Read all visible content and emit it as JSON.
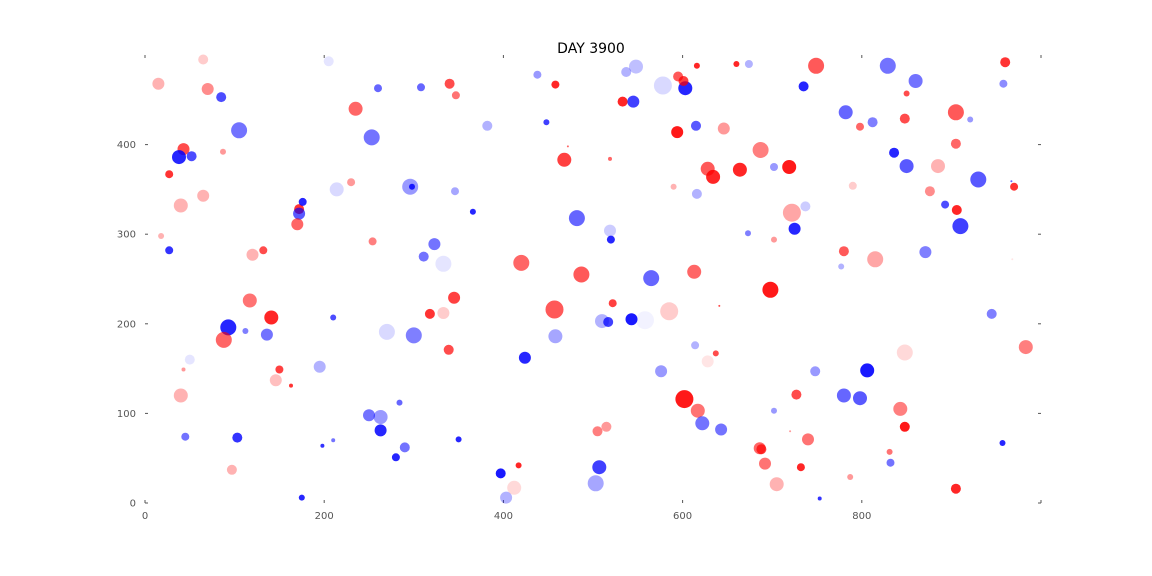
{
  "chart_data": {
    "type": "scatter",
    "title": "DAY 3900",
    "xlabel": "",
    "ylabel": "",
    "xlim": [
      0,
      1000
    ],
    "ylim": [
      0,
      500
    ],
    "x_ticks": [
      "0",
      "200",
      "400",
      "600",
      "800"
    ],
    "y_ticks": [
      "0",
      "100",
      "200",
      "300",
      "400"
    ],
    "grid": false,
    "colors": {
      "red": "#ff0000",
      "blue": "#0000ff"
    },
    "points": [
      [
        15,
        468,
        6,
        "r",
        0.3
      ],
      [
        65,
        495,
        5,
        "r",
        0.2
      ],
      [
        70,
        462,
        6,
        "r",
        0.45
      ],
      [
        85,
        453,
        5,
        "b",
        0.7
      ],
      [
        105,
        416,
        8,
        "b",
        0.55
      ],
      [
        43,
        395,
        6,
        "r",
        0.7
      ],
      [
        38,
        386,
        7,
        "b",
        0.85
      ],
      [
        52,
        387,
        5,
        "b",
        0.7
      ],
      [
        87,
        392,
        3,
        "r",
        0.4
      ],
      [
        27,
        367,
        4,
        "r",
        0.8
      ],
      [
        40,
        332,
        7,
        "r",
        0.3
      ],
      [
        65,
        343,
        6,
        "r",
        0.3
      ],
      [
        18,
        298,
        3,
        "r",
        0.3
      ],
      [
        27,
        282,
        4,
        "b",
        0.8
      ],
      [
        172,
        328,
        5,
        "r",
        0.8
      ],
      [
        172,
        323,
        6,
        "b",
        0.65
      ],
      [
        176,
        336,
        4,
        "b",
        0.85
      ],
      [
        170,
        311,
        6,
        "r",
        0.6
      ],
      [
        120,
        277,
        6,
        "r",
        0.3
      ],
      [
        132,
        282,
        4,
        "r",
        0.7
      ],
      [
        117,
        226,
        7,
        "r",
        0.55
      ],
      [
        93,
        196,
        8,
        "b",
        0.85
      ],
      [
        88,
        182,
        8,
        "r",
        0.6
      ],
      [
        141,
        207,
        7,
        "r",
        0.85
      ],
      [
        136,
        188,
        6,
        "b",
        0.55
      ],
      [
        112,
        192,
        3,
        "b",
        0.5
      ],
      [
        50,
        160,
        5,
        "b",
        0.1
      ],
      [
        43,
        149,
        2,
        "r",
        0.4
      ],
      [
        40,
        120,
        7,
        "r",
        0.3
      ],
      [
        150,
        149,
        4,
        "r",
        0.75
      ],
      [
        146,
        137,
        6,
        "r",
        0.25
      ],
      [
        163,
        131,
        2,
        "r",
        0.8
      ],
      [
        45,
        74,
        4,
        "b",
        0.55
      ],
      [
        103,
        73,
        5,
        "b",
        0.8
      ],
      [
        97,
        37,
        5,
        "r",
        0.3
      ],
      [
        175,
        6,
        3,
        "b",
        0.85
      ],
      [
        235,
        440,
        7,
        "r",
        0.6
      ],
      [
        260,
        463,
        4,
        "b",
        0.6
      ],
      [
        253,
        408,
        8,
        "b",
        0.55
      ],
      [
        308,
        464,
        4,
        "b",
        0.6
      ],
      [
        340,
        468,
        5,
        "r",
        0.7
      ],
      [
        347,
        455,
        4,
        "r",
        0.55
      ],
      [
        230,
        358,
        4,
        "r",
        0.4
      ],
      [
        214,
        350,
        7,
        "b",
        0.15
      ],
      [
        205,
        493,
        5,
        "b",
        0.1
      ],
      [
        296,
        353,
        8,
        "b",
        0.4
      ],
      [
        298,
        353,
        3,
        "b",
        0.85
      ],
      [
        346,
        348,
        4,
        "b",
        0.35
      ],
      [
        366,
        325,
        3,
        "b",
        0.85
      ],
      [
        254,
        292,
        4,
        "r",
        0.5
      ],
      [
        323,
        289,
        6,
        "b",
        0.55
      ],
      [
        311,
        275,
        5,
        "b",
        0.55
      ],
      [
        333,
        267,
        8,
        "b",
        0.1
      ],
      [
        210,
        207,
        3,
        "b",
        0.7
      ],
      [
        270,
        191,
        8,
        "b",
        0.15
      ],
      [
        300,
        187,
        8,
        "b",
        0.5
      ],
      [
        318,
        211,
        5,
        "r",
        0.8
      ],
      [
        333,
        212,
        6,
        "r",
        0.2
      ],
      [
        345,
        229,
        6,
        "r",
        0.75
      ],
      [
        339,
        171,
        5,
        "r",
        0.7
      ],
      [
        195,
        152,
        6,
        "b",
        0.3
      ],
      [
        250,
        98,
        6,
        "b",
        0.55
      ],
      [
        263,
        96,
        7,
        "b",
        0.4
      ],
      [
        263,
        81,
        6,
        "b",
        0.85
      ],
      [
        284,
        112,
        3,
        "b",
        0.6
      ],
      [
        198,
        64,
        2,
        "b",
        0.8
      ],
      [
        210,
        70,
        2,
        "b",
        0.55
      ],
      [
        290,
        62,
        5,
        "b",
        0.55
      ],
      [
        280,
        51,
        4,
        "b",
        0.85
      ],
      [
        350,
        71,
        3,
        "b",
        0.85
      ],
      [
        382,
        421,
        5,
        "b",
        0.3
      ],
      [
        438,
        478,
        4,
        "b",
        0.4
      ],
      [
        448,
        425,
        3,
        "b",
        0.75
      ],
      [
        458,
        467,
        4,
        "r",
        0.85
      ],
      [
        472,
        398,
        1,
        "r",
        0.6
      ],
      [
        468,
        383,
        7,
        "r",
        0.75
      ],
      [
        519,
        384,
        2,
        "r",
        0.6
      ],
      [
        545,
        448,
        6,
        "b",
        0.75
      ],
      [
        548,
        487,
        7,
        "b",
        0.25
      ],
      [
        533,
        448,
        5,
        "r",
        0.85
      ],
      [
        537,
        481,
        5,
        "b",
        0.3
      ],
      [
        578,
        466,
        9,
        "b",
        0.15
      ],
      [
        603,
        463,
        7,
        "b",
        0.85
      ],
      [
        595,
        476,
        5,
        "r",
        0.65
      ],
      [
        601,
        471,
        5,
        "r",
        0.75
      ],
      [
        616,
        488,
        3,
        "r",
        0.85
      ],
      [
        594,
        414,
        6,
        "r",
        0.9
      ],
      [
        615,
        421,
        5,
        "b",
        0.65
      ],
      [
        482,
        318,
        8,
        "b",
        0.6
      ],
      [
        519,
        304,
        6,
        "b",
        0.2
      ],
      [
        520,
        294,
        4,
        "b",
        0.85
      ],
      [
        590,
        353,
        3,
        "r",
        0.3
      ],
      [
        616,
        345,
        5,
        "b",
        0.3
      ],
      [
        420,
        268,
        8,
        "r",
        0.6
      ],
      [
        487,
        255,
        8,
        "r",
        0.65
      ],
      [
        565,
        251,
        8,
        "b",
        0.6
      ],
      [
        613,
        258,
        7,
        "r",
        0.6
      ],
      [
        457,
        216,
        9,
        "r",
        0.65
      ],
      [
        458,
        186,
        7,
        "b",
        0.35
      ],
      [
        522,
        223,
        4,
        "r",
        0.75
      ],
      [
        510,
        203,
        7,
        "b",
        0.3
      ],
      [
        517,
        202,
        5,
        "b",
        0.75
      ],
      [
        543,
        205,
        6,
        "b",
        0.9
      ],
      [
        558,
        204,
        9,
        "b",
        0.05
      ],
      [
        585,
        214,
        9,
        "r",
        0.2
      ],
      [
        614,
        176,
        4,
        "b",
        0.3
      ],
      [
        424,
        162,
        6,
        "b",
        0.85
      ],
      [
        576,
        147,
        6,
        "b",
        0.4
      ],
      [
        628,
        158,
        6,
        "r",
        0.1
      ],
      [
        637,
        167,
        3,
        "r",
        0.7
      ],
      [
        641,
        220,
        1,
        "r",
        0.7
      ],
      [
        602,
        116,
        9,
        "r",
        0.9
      ],
      [
        617,
        103,
        7,
        "r",
        0.55
      ],
      [
        622,
        89,
        7,
        "b",
        0.55
      ],
      [
        505,
        80,
        5,
        "r",
        0.5
      ],
      [
        515,
        85,
        5,
        "r",
        0.4
      ],
      [
        403,
        6,
        6,
        "b",
        0.3
      ],
      [
        397,
        33,
        5,
        "b",
        0.9
      ],
      [
        417,
        42,
        3,
        "r",
        0.85
      ],
      [
        412,
        17,
        7,
        "r",
        0.15
      ],
      [
        507,
        40,
        7,
        "b",
        0.75
      ],
      [
        503,
        22,
        8,
        "b",
        0.35
      ],
      [
        643,
        82,
        6,
        "b",
        0.55
      ],
      [
        660,
        490,
        3,
        "r",
        0.85
      ],
      [
        674,
        490,
        4,
        "b",
        0.3
      ],
      [
        646,
        418,
        6,
        "r",
        0.4
      ],
      [
        687,
        394,
        8,
        "r",
        0.5
      ],
      [
        628,
        373,
        7,
        "r",
        0.65
      ],
      [
        634,
        364,
        7,
        "r",
        0.85
      ],
      [
        664,
        372,
        7,
        "r",
        0.85
      ],
      [
        702,
        375,
        4,
        "b",
        0.4
      ],
      [
        719,
        375,
        7,
        "r",
        0.9
      ],
      [
        749,
        488,
        8,
        "r",
        0.65
      ],
      [
        735,
        465,
        5,
        "b",
        0.85
      ],
      [
        782,
        436,
        7,
        "b",
        0.6
      ],
      [
        812,
        425,
        5,
        "b",
        0.5
      ],
      [
        798,
        420,
        4,
        "r",
        0.6
      ],
      [
        829,
        488,
        8,
        "b",
        0.55
      ],
      [
        860,
        471,
        7,
        "b",
        0.55
      ],
      [
        848,
        429,
        5,
        "r",
        0.7
      ],
      [
        850,
        457,
        3,
        "r",
        0.7
      ],
      [
        905,
        436,
        8,
        "r",
        0.65
      ],
      [
        958,
        468,
        4,
        "b",
        0.45
      ],
      [
        960,
        492,
        5,
        "r",
        0.8
      ],
      [
        921,
        428,
        3,
        "b",
        0.4
      ],
      [
        905,
        401,
        5,
        "r",
        0.6
      ],
      [
        836,
        391,
        5,
        "b",
        0.85
      ],
      [
        850,
        376,
        7,
        "b",
        0.65
      ],
      [
        885,
        376,
        7,
        "r",
        0.3
      ],
      [
        876,
        348,
        5,
        "r",
        0.45
      ],
      [
        790,
        354,
        4,
        "r",
        0.2
      ],
      [
        737,
        331,
        5,
        "b",
        0.2
      ],
      [
        722,
        324,
        9,
        "r",
        0.35
      ],
      [
        702,
        294,
        3,
        "r",
        0.4
      ],
      [
        725,
        306,
        6,
        "b",
        0.85
      ],
      [
        673,
        301,
        3,
        "b",
        0.5
      ],
      [
        780,
        281,
        5,
        "r",
        0.65
      ],
      [
        777,
        264,
        3,
        "b",
        0.3
      ],
      [
        815,
        272,
        8,
        "r",
        0.35
      ],
      [
        871,
        280,
        6,
        "b",
        0.5
      ],
      [
        893,
        333,
        4,
        "b",
        0.7
      ],
      [
        906,
        327,
        5,
        "r",
        0.85
      ],
      [
        910,
        309,
        8,
        "b",
        0.75
      ],
      [
        930,
        361,
        8,
        "b",
        0.65
      ],
      [
        970,
        353,
        4,
        "r",
        0.8
      ],
      [
        968,
        272,
        1,
        "r",
        0.1
      ],
      [
        698,
        238,
        8,
        "r",
        0.9
      ],
      [
        727,
        121,
        5,
        "r",
        0.7
      ],
      [
        748,
        147,
        5,
        "b",
        0.4
      ],
      [
        780,
        120,
        7,
        "b",
        0.6
      ],
      [
        798,
        117,
        7,
        "b",
        0.65
      ],
      [
        806,
        148,
        7,
        "b",
        0.9
      ],
      [
        848,
        168,
        8,
        "r",
        0.15
      ],
      [
        843,
        105,
        7,
        "r",
        0.5
      ],
      [
        945,
        211,
        5,
        "b",
        0.5
      ],
      [
        983,
        174,
        7,
        "r",
        0.5
      ],
      [
        702,
        103,
        3,
        "b",
        0.4
      ],
      [
        720,
        80,
        1,
        "r",
        0.4
      ],
      [
        740,
        71,
        6,
        "r",
        0.55
      ],
      [
        686,
        61,
        6,
        "r",
        0.6
      ],
      [
        688,
        60,
        5,
        "r",
        0.7
      ],
      [
        692,
        44,
        6,
        "r",
        0.55
      ],
      [
        705,
        21,
        7,
        "r",
        0.3
      ],
      [
        732,
        40,
        4,
        "r",
        0.85
      ],
      [
        753,
        5,
        2,
        "b",
        0.8
      ],
      [
        787,
        29,
        3,
        "r",
        0.4
      ],
      [
        831,
        57,
        3,
        "r",
        0.55
      ],
      [
        832,
        45,
        4,
        "b",
        0.55
      ],
      [
        848,
        85,
        5,
        "r",
        0.9
      ],
      [
        905,
        16,
        5,
        "r",
        0.85
      ],
      [
        957,
        67,
        3,
        "b",
        0.85
      ],
      [
        967,
        359,
        1,
        "b",
        0.6
      ]
    ]
  }
}
